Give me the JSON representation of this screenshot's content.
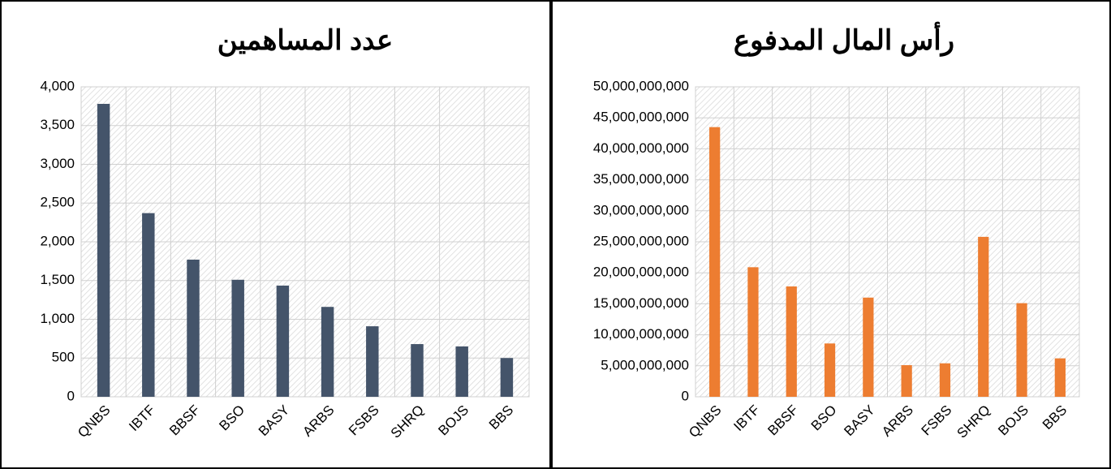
{
  "chart_data": [
    {
      "type": "bar",
      "title": "عدد المساهمين",
      "categories": [
        "QNBS",
        "IBTF",
        "BBSF",
        "BSO",
        "BASY",
        "ARBS",
        "FSBS",
        "SHRQ",
        "BOJS",
        "BBS"
      ],
      "values": [
        3780,
        2370,
        1770,
        1510,
        1435,
        1160,
        910,
        680,
        650,
        500
      ],
      "color": "#44546a",
      "ylim": [
        0,
        4000
      ],
      "yticks": [
        0,
        500,
        {
          "value": 1000,
          "label": "1,000"
        },
        {
          "value": 1500,
          "label": "1,500"
        },
        {
          "value": 2000,
          "label": "2,000"
        },
        {
          "value": 2500,
          "label": "2,500"
        },
        {
          "value": 3000,
          "label": "3,000"
        },
        {
          "value": 3500,
          "label": "3,500"
        },
        {
          "value": 4000,
          "label": "4,000"
        }
      ],
      "grid": true
    },
    {
      "type": "bar",
      "title": "رأس المال المدفوع",
      "categories": [
        "QNBS",
        "IBTF",
        "BBSF",
        "BSO",
        "BASY",
        "ARBS",
        "FSBS",
        "SHRQ",
        "BOJS",
        "BBS"
      ],
      "values": [
        43500000000,
        20900000000,
        17800000000,
        8600000000,
        16000000000,
        5100000000,
        5400000000,
        25800000000,
        15100000000,
        6200000000
      ],
      "color": "#ed7d31",
      "ylim": [
        0,
        50000000000
      ],
      "yticks": [
        0,
        {
          "value": 5000000000,
          "label": "5,000,000,000"
        },
        {
          "value": 10000000000,
          "label": "10,000,000,000"
        },
        {
          "value": 15000000000,
          "label": "15,000,000,000"
        },
        {
          "value": 20000000000,
          "label": "20,000,000,000"
        },
        {
          "value": 25000000000,
          "label": "25,000,000,000"
        },
        {
          "value": 30000000000,
          "label": "30,000,000,000"
        },
        {
          "value": 35000000000,
          "label": "35,000,000,000"
        },
        {
          "value": 40000000000,
          "label": "40,000,000,000"
        },
        {
          "value": 45000000000,
          "label": "45,000,000,000"
        },
        {
          "value": 50000000000,
          "label": "50,000,000,000"
        }
      ],
      "grid": true
    }
  ]
}
